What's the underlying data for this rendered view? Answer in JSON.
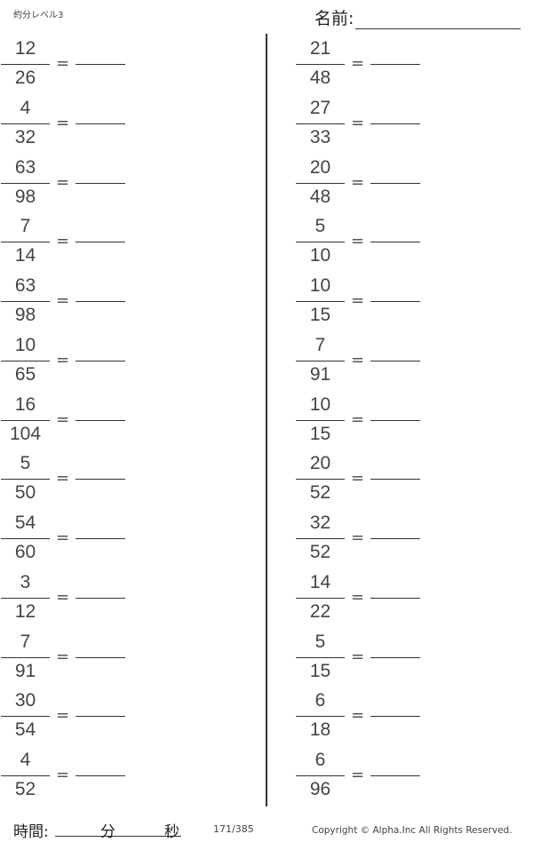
{
  "header": {
    "title": "約分レベル3",
    "name_label": "名前:"
  },
  "left_problems": [
    {
      "num": "12",
      "den": "26"
    },
    {
      "num": "4",
      "den": "32"
    },
    {
      "num": "63",
      "den": "98"
    },
    {
      "num": "7",
      "den": "14"
    },
    {
      "num": "63",
      "den": "98"
    },
    {
      "num": "10",
      "den": "65"
    },
    {
      "num": "16",
      "den": "104"
    },
    {
      "num": "5",
      "den": "50"
    },
    {
      "num": "54",
      "den": "60"
    },
    {
      "num": "3",
      "den": "12"
    },
    {
      "num": "7",
      "den": "91"
    },
    {
      "num": "30",
      "den": "54"
    },
    {
      "num": "4",
      "den": "52"
    }
  ],
  "right_problems": [
    {
      "num": "21",
      "den": "48"
    },
    {
      "num": "27",
      "den": "33"
    },
    {
      "num": "20",
      "den": "48"
    },
    {
      "num": "5",
      "den": "10"
    },
    {
      "num": "10",
      "den": "15"
    },
    {
      "num": "7",
      "den": "91"
    },
    {
      "num": "10",
      "den": "15"
    },
    {
      "num": "20",
      "den": "52"
    },
    {
      "num": "32",
      "den": "52"
    },
    {
      "num": "14",
      "den": "22"
    },
    {
      "num": "5",
      "den": "15"
    },
    {
      "num": "6",
      "den": "18"
    },
    {
      "num": "6",
      "den": "96"
    }
  ],
  "equals": "=",
  "footer": {
    "time_label": "時間:",
    "minutes_label": "分",
    "seconds_label": "秒",
    "page": "171/385",
    "copyright": "Copyright ©  Alpha.Inc All Rights Reserved."
  }
}
